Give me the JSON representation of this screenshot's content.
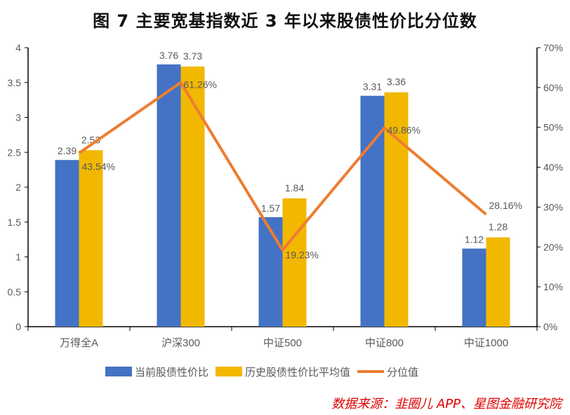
{
  "chart_data": {
    "type": "bar",
    "title": "图 7   主要宽基指数近 3 年以来股债性价比分位数",
    "categories": [
      "万得全A",
      "沪深300",
      "中证500",
      "中证800",
      "中证1000"
    ],
    "series": [
      {
        "name": "当前股债性价比",
        "type": "bar",
        "axis": "left",
        "color": "#4472C4",
        "values": [
          2.39,
          3.76,
          1.57,
          3.31,
          1.12
        ],
        "labels": [
          "2.39",
          "3.76",
          "1.57",
          "3.31",
          "1.12"
        ]
      },
      {
        "name": "历史股债性价比平均值",
        "type": "bar",
        "axis": "left",
        "color": "#F2B800",
        "values": [
          2.53,
          3.73,
          1.84,
          3.36,
          1.28
        ],
        "labels": [
          "2.53",
          "3.73",
          "1.84",
          "3.36",
          "1.28"
        ]
      },
      {
        "name": "分位值",
        "type": "line",
        "axis": "right",
        "color": "#ED7D31",
        "values": [
          43.54,
          61.26,
          19.23,
          49.86,
          28.16
        ],
        "labels": [
          "43.54%",
          "61.26%",
          "19.23%",
          "49.86%",
          "28.16%"
        ]
      }
    ],
    "y_left": {
      "range": [
        0,
        4
      ],
      "ticks": [
        "0",
        "0.5",
        "1",
        "1.5",
        "2",
        "2.5",
        "3",
        "3.5",
        "4"
      ]
    },
    "y_right": {
      "range": [
        0,
        70
      ],
      "unit": "%",
      "ticks": [
        "0%",
        "10%",
        "20%",
        "30%",
        "40%",
        "50%",
        "60%",
        "70%"
      ]
    },
    "grid": false,
    "legend_placement": "bottom"
  },
  "source": "数据来源：韭圈儿 APP、星图金融研究院"
}
